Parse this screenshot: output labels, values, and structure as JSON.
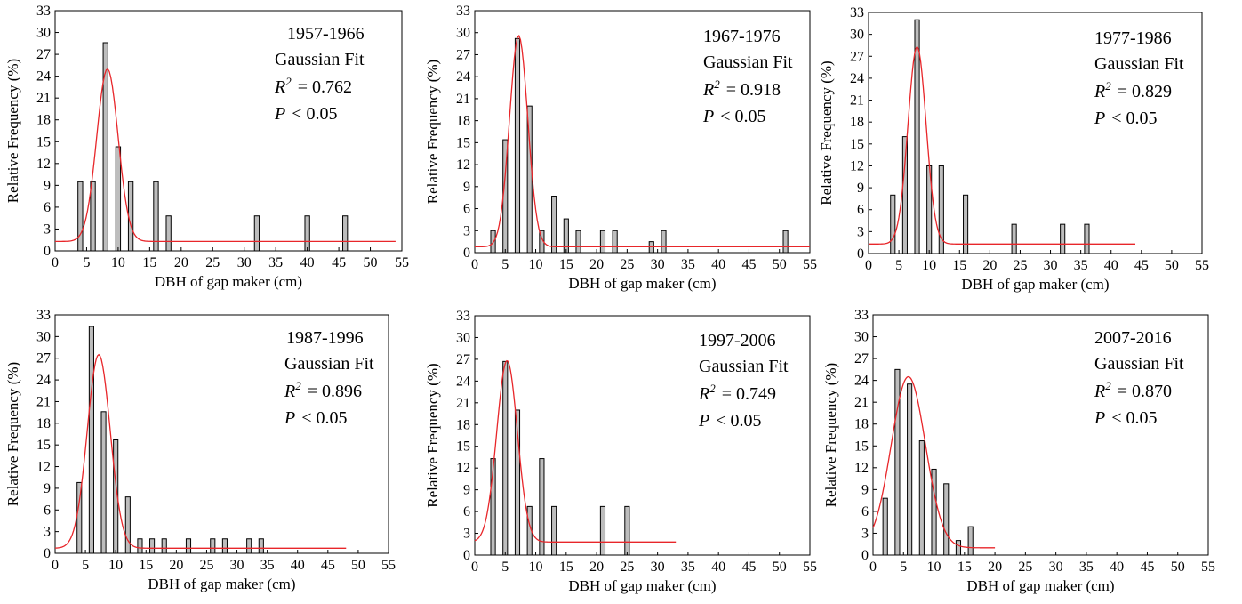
{
  "figure": {
    "panel_colors": {
      "bar_fill": "#bdbdbd",
      "bar_stroke": "#000000",
      "fit_line": "#e8262a",
      "axis": "#000000"
    }
  },
  "chart_data": [
    {
      "type": "bar",
      "period": "1957-1966",
      "fit_label": "Gaussian Fit",
      "r2_value": "= 0.762",
      "p_value": "< 0.05",
      "xlabel": "DBH of gap maker (cm)",
      "ylabel": "Relative Frequency (%)",
      "xlim": [
        0,
        55
      ],
      "ylim": [
        0,
        33
      ],
      "x_ticks": [
        0,
        5,
        10,
        15,
        20,
        25,
        30,
        35,
        40,
        45,
        50,
        55
      ],
      "y_ticks": [
        0,
        3,
        6,
        9,
        12,
        15,
        18,
        21,
        24,
        27,
        30,
        33
      ],
      "x": [
        4,
        6,
        8,
        10,
        12,
        16,
        18,
        32,
        40,
        46
      ],
      "values": [
        9.5,
        9.5,
        28.6,
        14.3,
        9.5,
        9.5,
        4.8,
        4.8,
        4.8,
        4.8
      ],
      "fit": {
        "y0": 1.3,
        "xc": 8.3,
        "amp": 23.7,
        "sigma": 1.7,
        "x_range": [
          0,
          54
        ]
      }
    },
    {
      "type": "bar",
      "period": "1967-1976",
      "fit_label": "Gaussian Fit",
      "r2_value": "= 0.918",
      "p_value": "< 0.05",
      "xlabel": "DBH of gap maker (cm)",
      "ylabel": "Relative Frequency (%)",
      "xlim": [
        0,
        55
      ],
      "ylim": [
        0,
        33
      ],
      "x_ticks": [
        0,
        5,
        10,
        15,
        20,
        25,
        30,
        35,
        40,
        45,
        50,
        55
      ],
      "y_ticks": [
        0,
        3,
        6,
        9,
        12,
        15,
        18,
        21,
        24,
        27,
        30,
        33
      ],
      "x": [
        3,
        5,
        7,
        9,
        11,
        13,
        15,
        17,
        21,
        23,
        29,
        31,
        51
      ],
      "values": [
        3.0,
        15.4,
        29.2,
        20.0,
        3.0,
        7.7,
        4.6,
        3.0,
        3.0,
        3.0,
        1.5,
        3.0,
        3.0
      ],
      "fit": {
        "y0": 0.8,
        "xc": 7.2,
        "amp": 28.8,
        "sigma": 1.5,
        "x_range": [
          0,
          55
        ]
      }
    },
    {
      "type": "bar",
      "period": "1977-1986",
      "fit_label": "Gaussian Fit",
      "r2_value": "= 0.829",
      "p_value": "< 0.05",
      "xlabel": "DBH of gap maker (cm)",
      "ylabel": "Relative Frequency (%)",
      "xlim": [
        0,
        55
      ],
      "ylim": [
        0,
        33
      ],
      "x_ticks": [
        0,
        5,
        10,
        15,
        20,
        25,
        30,
        35,
        40,
        45,
        50,
        55
      ],
      "y_ticks": [
        0,
        3,
        6,
        9,
        12,
        15,
        18,
        21,
        24,
        27,
        30,
        33
      ],
      "x": [
        4,
        6,
        8,
        10,
        12,
        16,
        24,
        32,
        36
      ],
      "values": [
        8,
        16,
        32,
        12,
        12,
        8,
        4,
        4,
        4
      ],
      "fit": {
        "y0": 1.3,
        "xc": 8.0,
        "amp": 27.0,
        "sigma": 1.5,
        "x_range": [
          0,
          44
        ]
      }
    },
    {
      "type": "bar",
      "period": "1987-1996",
      "fit_label": "Gaussian Fit",
      "r2_value": "= 0.896",
      "p_value": "< 0.05",
      "xlabel": "DBH of gap maker (cm)",
      "ylabel": "Relative Frequency (%)",
      "xlim": [
        0,
        55
      ],
      "ylim": [
        0,
        33
      ],
      "x_ticks": [
        0,
        5,
        10,
        15,
        20,
        25,
        30,
        35,
        40,
        45,
        50,
        55
      ],
      "y_ticks": [
        0,
        3,
        6,
        9,
        12,
        15,
        18,
        21,
        24,
        27,
        30,
        33
      ],
      "x": [
        4,
        6,
        8,
        10,
        12,
        14,
        16,
        18,
        22,
        26,
        28,
        32,
        34
      ],
      "values": [
        9.8,
        31.4,
        19.6,
        15.7,
        7.8,
        2.0,
        2.0,
        2.0,
        2.0,
        2.0,
        2.0,
        2.0,
        2.0
      ],
      "fit": {
        "y0": 0.7,
        "xc": 7.2,
        "amp": 26.8,
        "sigma": 1.9,
        "x_range": [
          0,
          48
        ]
      }
    },
    {
      "type": "bar",
      "period": "1997-2006",
      "fit_label": "Gaussian Fit",
      "r2_value": "= 0.749",
      "p_value": "< 0.05",
      "xlabel": "DBH of gap maker (cm)",
      "ylabel": "Relative Frequency (%)",
      "xlim": [
        0,
        55
      ],
      "ylim": [
        0,
        33
      ],
      "x_ticks": [
        0,
        5,
        10,
        15,
        20,
        25,
        30,
        35,
        40,
        45,
        50,
        55
      ],
      "y_ticks": [
        0,
        3,
        6,
        9,
        12,
        15,
        18,
        21,
        24,
        27,
        30,
        33
      ],
      "x": [
        3,
        5,
        7,
        9,
        11,
        13,
        21,
        25
      ],
      "values": [
        13.3,
        26.7,
        20.0,
        6.7,
        13.3,
        6.7,
        6.7,
        6.7
      ],
      "fit": {
        "y0": 1.8,
        "xc": 5.3,
        "amp": 25.0,
        "sigma": 1.7,
        "x_range": [
          0,
          33
        ]
      }
    },
    {
      "type": "bar",
      "period": "2007-2016",
      "fit_label": "Gaussian Fit",
      "r2_value": "= 0.870",
      "p_value": "< 0.05",
      "xlabel": "DBH of gap maker (cm)",
      "ylabel": "Relative Frequency (%)",
      "xlim": [
        0,
        55
      ],
      "ylim": [
        0,
        33
      ],
      "x_ticks": [
        0,
        5,
        10,
        15,
        20,
        25,
        30,
        35,
        40,
        45,
        50,
        55
      ],
      "y_ticks": [
        0,
        3,
        6,
        9,
        12,
        15,
        18,
        21,
        24,
        27,
        30,
        33
      ],
      "x": [
        2,
        4,
        6,
        8,
        10,
        12,
        14,
        16
      ],
      "values": [
        7.8,
        25.5,
        23.5,
        15.7,
        11.8,
        9.8,
        2.0,
        3.9
      ],
      "fit": {
        "y0": 1.0,
        "xc": 5.8,
        "amp": 23.5,
        "sigma": 2.8,
        "x_range": [
          0,
          20
        ]
      }
    }
  ]
}
